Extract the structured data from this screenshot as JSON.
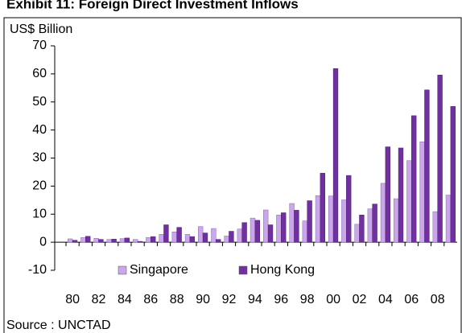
{
  "chart_data": {
    "type": "bar",
    "title": "Exhibit 11: Foreign Direct Investment Inflows",
    "y_label": "US$ Billion",
    "source": "Source : UNCTAD",
    "categories": [
      "80",
      null,
      "82",
      null,
      "84",
      null,
      "86",
      null,
      "88",
      null,
      "90",
      null,
      "92",
      null,
      "94",
      null,
      "96",
      null,
      "98",
      null,
      "00",
      null,
      "02",
      null,
      "04",
      null,
      "06",
      null,
      "08",
      null
    ],
    "series": [
      {
        "name": "Singapore",
        "color": "#c9a7ea",
        "values": [
          1.2,
          1.7,
          1.4,
          1.0,
          1.3,
          1.0,
          1.7,
          2.8,
          3.7,
          2.8,
          5.6,
          4.9,
          2.2,
          4.7,
          8.6,
          11.5,
          9.7,
          13.8,
          7.6,
          16.6,
          16.5,
          15.1,
          6.4,
          11.9,
          21.0,
          15.5,
          29.1,
          35.8,
          10.9,
          16.8
        ]
      },
      {
        "name": "Hong Kong",
        "color": "#7030a0",
        "values": [
          0.7,
          2.1,
          1.0,
          1.1,
          1.5,
          0.3,
          2.0,
          6.2,
          5.3,
          2.0,
          3.3,
          1.0,
          3.9,
          7.0,
          7.8,
          6.2,
          10.5,
          11.4,
          14.8,
          24.6,
          61.9,
          23.8,
          9.7,
          13.6,
          34.0,
          33.6,
          45.1,
          54.3,
          59.6,
          48.4
        ]
      }
    ],
    "ylim": [
      -10,
      70
    ],
    "yticks": [
      -10,
      0,
      10,
      20,
      30,
      40,
      50,
      60,
      70
    ],
    "grid": false
  }
}
